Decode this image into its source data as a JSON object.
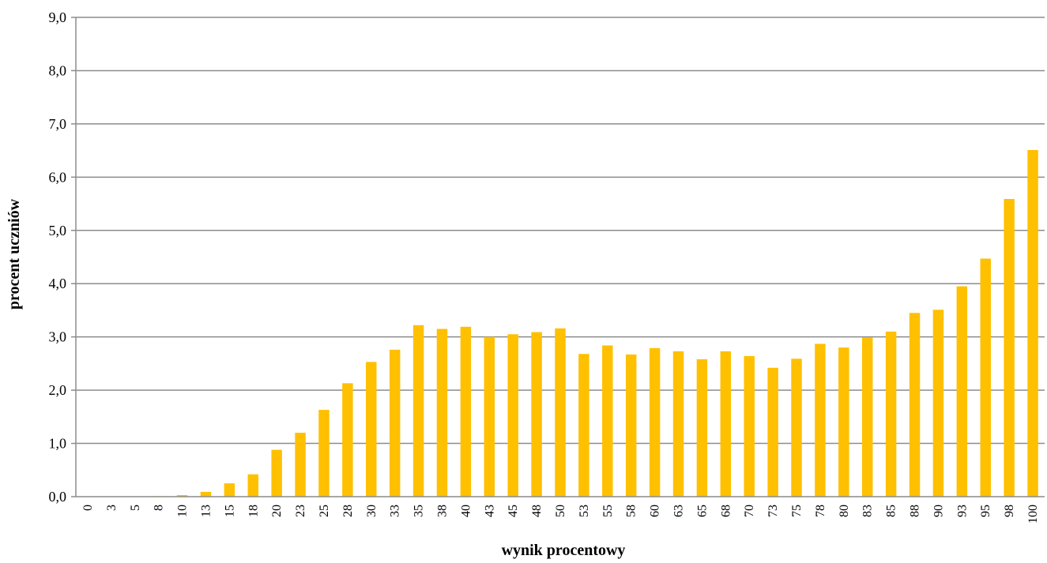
{
  "chart_data": {
    "type": "bar",
    "xlabel": "wynik procentowy",
    "ylabel": "procent uczniów",
    "ylim": [
      0,
      9
    ],
    "yticks": [
      "0,0",
      "1,0",
      "2,0",
      "3,0",
      "4,0",
      "5,0",
      "6,0",
      "7,0",
      "8,0",
      "9,0"
    ],
    "grid": true,
    "bar_color": "#FFC000",
    "categories": [
      "0",
      "3",
      "5",
      "8",
      "10",
      "13",
      "15",
      "18",
      "20",
      "23",
      "25",
      "28",
      "30",
      "33",
      "35",
      "38",
      "40",
      "43",
      "45",
      "48",
      "50",
      "53",
      "55",
      "58",
      "60",
      "63",
      "65",
      "68",
      "70",
      "73",
      "75",
      "78",
      "80",
      "83",
      "85",
      "88",
      "90",
      "93",
      "95",
      "98",
      "100"
    ],
    "values": [
      0.0,
      0.0,
      0.0,
      0.01,
      0.03,
      0.09,
      0.25,
      0.42,
      0.88,
      1.2,
      1.63,
      2.13,
      2.53,
      2.76,
      3.22,
      3.15,
      3.19,
      3.0,
      3.05,
      3.09,
      3.16,
      2.68,
      2.84,
      2.67,
      2.79,
      2.73,
      2.58,
      2.73,
      2.64,
      2.42,
      2.59,
      2.87,
      2.8,
      2.99,
      3.1,
      3.45,
      3.51,
      3.95,
      4.47,
      5.59,
      6.51
    ]
  }
}
